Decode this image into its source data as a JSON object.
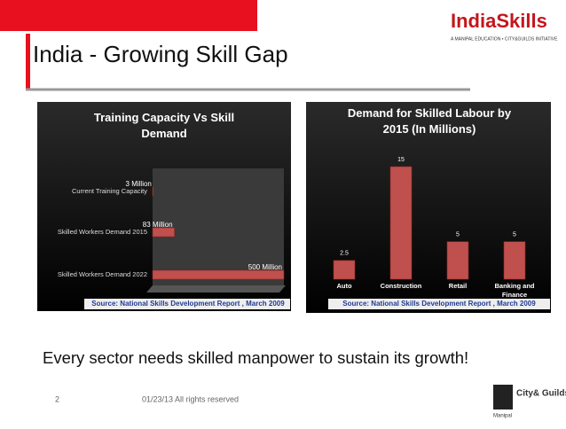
{
  "slide": {
    "title": "India - Growing Skill Gap",
    "logo": "IndiaSkills",
    "logo_tagline": "A MANIPAL EDUCATION • CITY&GUILDS INITIATIVE",
    "message": "Every sector needs skilled manpower to sustain its growth!",
    "page_number": "2",
    "footer": "01/23/13  All rights reserved",
    "partner_logo": "City& Guilds",
    "partner_sub": "Manipal"
  },
  "chart_data": [
    {
      "type": "hbar",
      "title": "Training Capacity Vs Skill Demand",
      "categories": [
        "Current Training Capacity",
        "Skilled Workers Demand 2015",
        "Skilled Workers Demand 2022"
      ],
      "values": [
        3,
        83,
        500
      ],
      "value_labels": [
        "3  Million",
        "83 Million",
        "500 Million"
      ],
      "color": "#c0504d",
      "source": "Source: National Skills Development Report , March 2009"
    },
    {
      "type": "bar",
      "title": "Demand for Skilled Labour by 2015 (In Millions)",
      "categories": [
        "Auto",
        "Construction",
        "Retail",
        "Banking and Finance"
      ],
      "values": [
        2.5,
        15,
        5,
        5
      ],
      "color": "#c0504d",
      "source": "Source: National Skills Development Report , March 2009"
    }
  ]
}
